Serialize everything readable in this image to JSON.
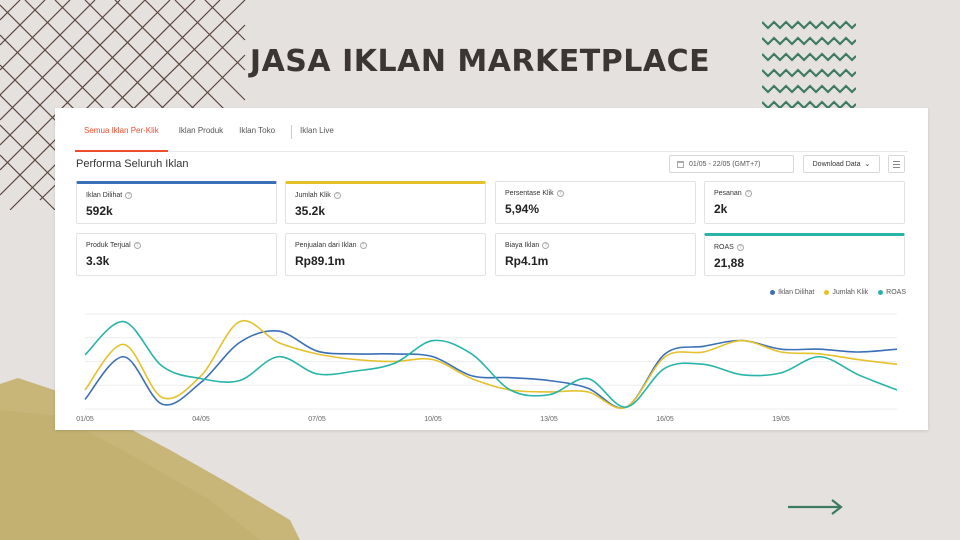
{
  "title": "JASA IKLAN MARKETPLACE",
  "tabs": [
    {
      "label": "Semua Iklan Per-Klik",
      "active": true
    },
    {
      "label": "Iklan Produk",
      "active": false
    },
    {
      "label": "Iklan Toko",
      "active": false
    },
    {
      "label": "Iklan Live",
      "active": false
    }
  ],
  "section_title": "Performa Seluruh Iklan",
  "date_range": "01/05 - 22/05 (GMT+7)",
  "download_label": "Download Data",
  "metrics": [
    {
      "label": "Iklan Dilihat",
      "value": "592k",
      "selected": "blue"
    },
    {
      "label": "Jumlah Klik",
      "value": "35.2k",
      "selected": "yellow"
    },
    {
      "label": "Persentase Klik",
      "value": "5,94%",
      "selected": ""
    },
    {
      "label": "Pesanan",
      "value": "2k",
      "selected": ""
    },
    {
      "label": "Produk Terjual",
      "value": "3.3k",
      "selected": ""
    },
    {
      "label": "Penjualan dari Iklan",
      "value": "Rp89.1m",
      "selected": ""
    },
    {
      "label": "Biaya Iklan",
      "value": "Rp4.1m",
      "selected": ""
    },
    {
      "label": "ROAS",
      "value": "21,88",
      "selected": "teal"
    }
  ],
  "colors": {
    "accent": "#ee4d2d",
    "blue": "#3b6fb6",
    "yellow": "#e5c12c",
    "teal": "#28b4a8"
  },
  "chart_data": {
    "type": "line",
    "x": [
      "01/05",
      "02/05",
      "03/05",
      "04/05",
      "05/05",
      "06/05",
      "07/05",
      "08/05",
      "09/05",
      "10/05",
      "11/05",
      "12/05",
      "13/05",
      "14/05",
      "15/05",
      "16/05",
      "17/05",
      "18/05",
      "19/05",
      "20/05",
      "21/05",
      "22/05"
    ],
    "tick_labels": [
      "01/05",
      "04/05",
      "07/05",
      "10/05",
      "13/05",
      "16/05",
      "19/05"
    ],
    "ylim": [
      0,
      100
    ],
    "grid": true,
    "legend": "top-right",
    "series": [
      {
        "name": "Iklan Dilihat",
        "color": "#3b6fb6",
        "values": [
          10,
          55,
          5,
          28,
          70,
          82,
          61,
          58,
          58,
          55,
          35,
          33,
          30,
          22,
          2,
          58,
          66,
          72,
          63,
          63,
          60,
          63
        ]
      },
      {
        "name": "Jumlah Klik",
        "color": "#e5c12c",
        "values": [
          20,
          68,
          12,
          35,
          92,
          70,
          58,
          52,
          50,
          52,
          32,
          20,
          18,
          18,
          2,
          55,
          60,
          72,
          60,
          58,
          52,
          47
        ]
      },
      {
        "name": "ROAS",
        "color": "#28b4a8",
        "values": [
          57,
          92,
          45,
          32,
          30,
          55,
          37,
          40,
          48,
          72,
          58,
          20,
          15,
          32,
          2,
          43,
          47,
          36,
          38,
          55,
          36,
          20
        ]
      }
    ]
  }
}
